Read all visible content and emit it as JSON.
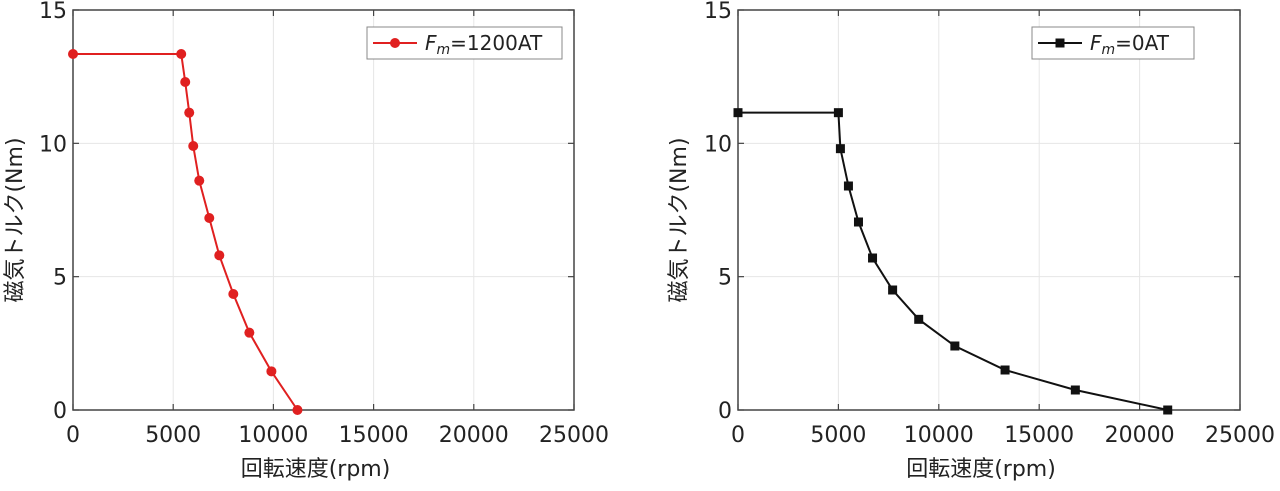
{
  "chart_data": [
    {
      "type": "line",
      "xlabel": "回転速度(rpm)",
      "ylabel": "磁気トルク(Nm)",
      "xlim": [
        0,
        25000
      ],
      "ylim": [
        0,
        15
      ],
      "xticks": [
        "0",
        "5000",
        "10000",
        "15000",
        "20000",
        "25000"
      ],
      "yticks": [
        "0",
        "5",
        "10",
        "15"
      ],
      "grid": true,
      "legend_position": "top-right",
      "color": "#e02020",
      "marker": "circle",
      "series": [
        {
          "name_prefix": "F",
          "name_sub": "m",
          "name_suffix": "=1200AT",
          "x": [
            0,
            5400,
            5600,
            5800,
            6000,
            6300,
            6800,
            7300,
            8000,
            8800,
            9900,
            11200
          ],
          "y": [
            13.35,
            13.35,
            12.3,
            11.15,
            9.9,
            8.6,
            7.2,
            5.8,
            4.35,
            2.9,
            1.45,
            0
          ]
        }
      ]
    },
    {
      "type": "line",
      "xlabel": "回転速度(rpm)",
      "ylabel": "磁気トルク(Nm)",
      "xlim": [
        0,
        25000
      ],
      "ylim": [
        0,
        15
      ],
      "xticks": [
        "0",
        "5000",
        "10000",
        "15000",
        "20000",
        "25000"
      ],
      "yticks": [
        "0",
        "5",
        "10",
        "15"
      ],
      "grid": true,
      "legend_position": "top-right",
      "color": "#111111",
      "marker": "square",
      "series": [
        {
          "name_prefix": "F",
          "name_sub": "m",
          "name_suffix": "=0AT",
          "x": [
            0,
            5000,
            5100,
            5500,
            6000,
            6700,
            7700,
            9000,
            10800,
            13300,
            16800,
            21400
          ],
          "y": [
            11.15,
            11.15,
            9.8,
            8.4,
            7.05,
            5.7,
            4.5,
            3.4,
            2.4,
            1.5,
            0.75,
            0
          ]
        }
      ]
    }
  ]
}
